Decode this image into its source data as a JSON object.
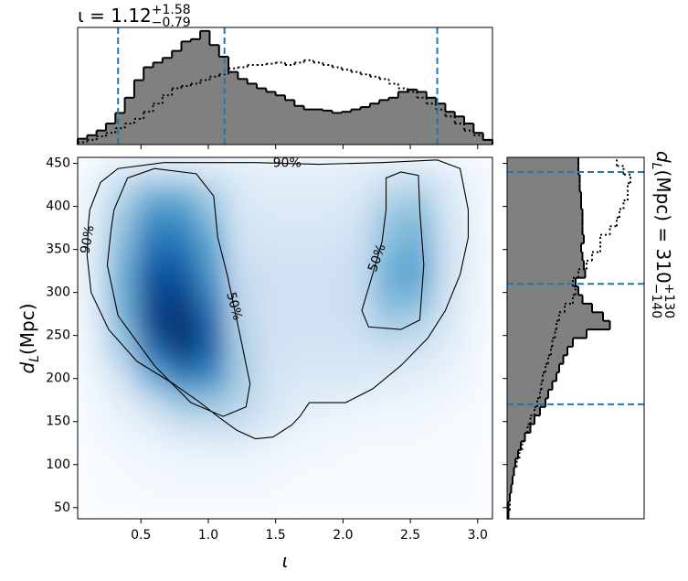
{
  "chart_data": {
    "type": "joint",
    "title": {
      "text": "ι = 1.12",
      "sup": "+1.58",
      "sub": "−0.79"
    },
    "y_title": {
      "var": "d",
      "var_sub": "L",
      "text": " (Mpc) = 310",
      "sup": "+130",
      "sub": "−140"
    },
    "xlabel": "ι",
    "ylabel": {
      "var": "d",
      "var_sub": "L",
      "text": " (Mpc)"
    },
    "xlim": [
      0.03,
      3.11
    ],
    "ylim": [
      37,
      457
    ],
    "xticks": [
      0.5,
      {
        "value": 1,
        "label": "1.0"
      },
      1.5,
      {
        "value": 2,
        "label": "2.0"
      },
      2.5,
      {
        "value": 3,
        "label": "3.0"
      }
    ],
    "yticks": [
      50,
      100,
      150,
      200,
      250,
      300,
      350,
      400,
      450
    ],
    "hist_lim": [
      0,
      100
    ],
    "quantile_color": "#1f77b4",
    "x_quantiles": [
      0.33,
      1.12,
      2.7
    ],
    "y_quantiles": [
      170,
      310,
      440
    ],
    "hist_fill": "#808080",
    "x_hist": {
      "bins": [
        0.03,
        0.1,
        0.17,
        0.24,
        0.31,
        0.38,
        0.45,
        0.52,
        0.59,
        0.66,
        0.73,
        0.8,
        0.87,
        0.94,
        1.01,
        1.08,
        1.15,
        1.22,
        1.29,
        1.36,
        1.43,
        1.5,
        1.57,
        1.64,
        1.71,
        1.78,
        1.85,
        1.92,
        1.99,
        2.06,
        2.13,
        2.2,
        2.27,
        2.34,
        2.41,
        2.48,
        2.55,
        2.62,
        2.69,
        2.76,
        2.83,
        2.9,
        2.97,
        3.04,
        3.11
      ],
      "filled": [
        5,
        8,
        12,
        18,
        27,
        40,
        55,
        66,
        70,
        74,
        80,
        88,
        90,
        97,
        85,
        75,
        62,
        56,
        52,
        48,
        45,
        42,
        38,
        33,
        30,
        30,
        29,
        27,
        28,
        30,
        32,
        35,
        38,
        40,
        45,
        47,
        45,
        40,
        35,
        28,
        24,
        18,
        10,
        4
      ],
      "dotted": [
        2,
        4,
        7,
        10,
        14,
        18,
        22,
        28,
        35,
        42,
        48,
        50,
        52,
        55,
        58,
        60,
        65,
        66,
        68,
        68,
        69,
        70,
        68,
        70,
        72,
        70,
        68,
        66,
        64,
        62,
        60,
        58,
        56,
        52,
        48,
        45,
        40,
        35,
        30,
        24,
        18,
        12,
        8,
        4
      ]
    },
    "y_hist": {
      "bins": [
        37,
        47,
        57,
        67,
        77,
        87,
        97,
        107,
        117,
        127,
        137,
        147,
        157,
        167,
        177,
        187,
        197,
        207,
        217,
        227,
        237,
        247,
        257,
        267,
        277,
        287,
        297,
        307,
        317,
        327,
        337,
        347,
        357,
        367,
        377,
        387,
        397,
        407,
        417,
        427,
        437,
        447,
        457
      ],
      "filled": [
        1,
        1,
        2,
        3,
        4,
        5,
        6,
        8,
        10,
        13,
        17,
        20,
        24,
        28,
        30,
        33,
        36,
        38,
        41,
        44,
        48,
        58,
        75,
        70,
        62,
        55,
        52,
        50,
        57,
        56,
        55,
        54,
        56,
        55,
        55,
        55,
        54,
        54,
        53,
        53,
        52,
        52
      ],
      "dotted": [
        1,
        2,
        2,
        3,
        4,
        5,
        7,
        9,
        11,
        13,
        15,
        17,
        20,
        22,
        24,
        25,
        26,
        28,
        30,
        32,
        33,
        35,
        36,
        38,
        42,
        48,
        50,
        48,
        52,
        58,
        62,
        68,
        68,
        75,
        80,
        82,
        85,
        88,
        88,
        90,
        85,
        80
      ]
    },
    "cmap": [
      "#f7fbff",
      "#deebf7",
      "#c6dbef",
      "#9ecae1",
      "#6baed6",
      "#4292c6",
      "#2171b5",
      "#08519c",
      "#08306b"
    ],
    "clim": [
      0,
      1
    ],
    "density": {
      "x": [
        0.14,
        0.36,
        0.58,
        0.8,
        1.02,
        1.24,
        1.46,
        1.68,
        1.9,
        2.12,
        2.34,
        2.56,
        2.78,
        3.0
      ],
      "y": [
        442,
        412,
        382,
        352,
        322,
        292,
        262,
        232,
        202,
        172,
        142,
        112,
        82,
        52
      ],
      "values": [
        [
          0.05,
          0.15,
          0.2,
          0.2,
          0.15,
          0.12,
          0.1,
          0.1,
          0.1,
          0.12,
          0.15,
          0.15,
          0.1,
          0.04
        ],
        [
          0.08,
          0.3,
          0.5,
          0.5,
          0.35,
          0.15,
          0.12,
          0.12,
          0.12,
          0.15,
          0.3,
          0.35,
          0.15,
          0.05
        ],
        [
          0.1,
          0.4,
          0.65,
          0.65,
          0.45,
          0.18,
          0.15,
          0.15,
          0.15,
          0.2,
          0.4,
          0.45,
          0.18,
          0.05
        ],
        [
          0.12,
          0.45,
          0.75,
          0.75,
          0.55,
          0.2,
          0.18,
          0.18,
          0.18,
          0.22,
          0.45,
          0.5,
          0.2,
          0.06
        ],
        [
          0.12,
          0.5,
          0.85,
          0.85,
          0.6,
          0.25,
          0.2,
          0.2,
          0.2,
          0.25,
          0.5,
          0.55,
          0.2,
          0.05
        ],
        [
          0.12,
          0.5,
          0.9,
          0.95,
          0.7,
          0.28,
          0.2,
          0.2,
          0.2,
          0.25,
          0.45,
          0.45,
          0.18,
          0.05
        ],
        [
          0.1,
          0.45,
          0.9,
          1.0,
          0.8,
          0.3,
          0.2,
          0.2,
          0.2,
          0.22,
          0.35,
          0.3,
          0.15,
          0.04
        ],
        [
          0.08,
          0.35,
          0.75,
          0.95,
          0.8,
          0.35,
          0.2,
          0.18,
          0.18,
          0.18,
          0.2,
          0.18,
          0.1,
          0.03
        ],
        [
          0.05,
          0.2,
          0.5,
          0.7,
          0.65,
          0.35,
          0.18,
          0.15,
          0.15,
          0.15,
          0.12,
          0.1,
          0.06,
          0.02
        ],
        [
          0.03,
          0.1,
          0.25,
          0.4,
          0.4,
          0.3,
          0.18,
          0.12,
          0.1,
          0.08,
          0.06,
          0.05,
          0.03,
          0.01
        ],
        [
          0.02,
          0.05,
          0.1,
          0.18,
          0.2,
          0.2,
          0.12,
          0.06,
          0.04,
          0.03,
          0.02,
          0.02,
          0.01,
          0.01
        ],
        [
          0.01,
          0.02,
          0.04,
          0.06,
          0.07,
          0.07,
          0.05,
          0.03,
          0.02,
          0.01,
          0.01,
          0.01,
          0.01,
          0
        ],
        [
          0,
          0.01,
          0.02,
          0.03,
          0.03,
          0.03,
          0.02,
          0.01,
          0.01,
          0,
          0,
          0,
          0,
          0
        ],
        [
          0,
          0,
          0.01,
          0.01,
          0.01,
          0.01,
          0.01,
          0,
          0,
          0,
          0,
          0,
          0,
          0
        ]
      ]
    },
    "contours": [
      {
        "label": "90%",
        "x": [
          0.12,
          0.2,
          0.33,
          0.67,
          1.35,
          1.82,
          2.29,
          2.7,
          2.87,
          2.93,
          2.93,
          2.87,
          2.76,
          2.63,
          2.43,
          2.22,
          2.02,
          1.75,
          1.68,
          1.62,
          1.48,
          1.35,
          1.21,
          1.07,
          0.94,
          0.74,
          0.47,
          0.26,
          0.13,
          0.1,
          0.11
        ],
        "y": [
          396,
          428,
          444,
          451,
          451,
          449,
          451,
          454,
          444,
          396,
          364,
          321,
          279,
          247,
          215,
          188,
          172,
          172,
          156,
          146,
          132,
          130,
          140,
          156,
          172,
          194,
          220,
          257,
          300,
          343,
          380
        ]
      },
      {
        "label": "50%",
        "x": [
          0.3,
          0.4,
          0.6,
          0.91,
          1.04,
          1.07,
          1.14,
          1.24,
          1.31,
          1.28,
          1.11,
          0.87,
          0.6,
          0.33,
          0.25,
          0.28
        ],
        "y": [
          396,
          433,
          444,
          438,
          412,
          364,
          321,
          247,
          194,
          167,
          156,
          172,
          215,
          273,
          332,
          375
        ]
      },
      {
        "label": "50%",
        "x": [
          2.32,
          2.43,
          2.56,
          2.57,
          2.6,
          2.57,
          2.43,
          2.19,
          2.14,
          2.22,
          2.29,
          2.32
        ],
        "y": [
          433,
          440,
          436,
          396,
          332,
          268,
          257,
          260,
          279,
          321,
          359,
          396
        ]
      }
    ]
  }
}
